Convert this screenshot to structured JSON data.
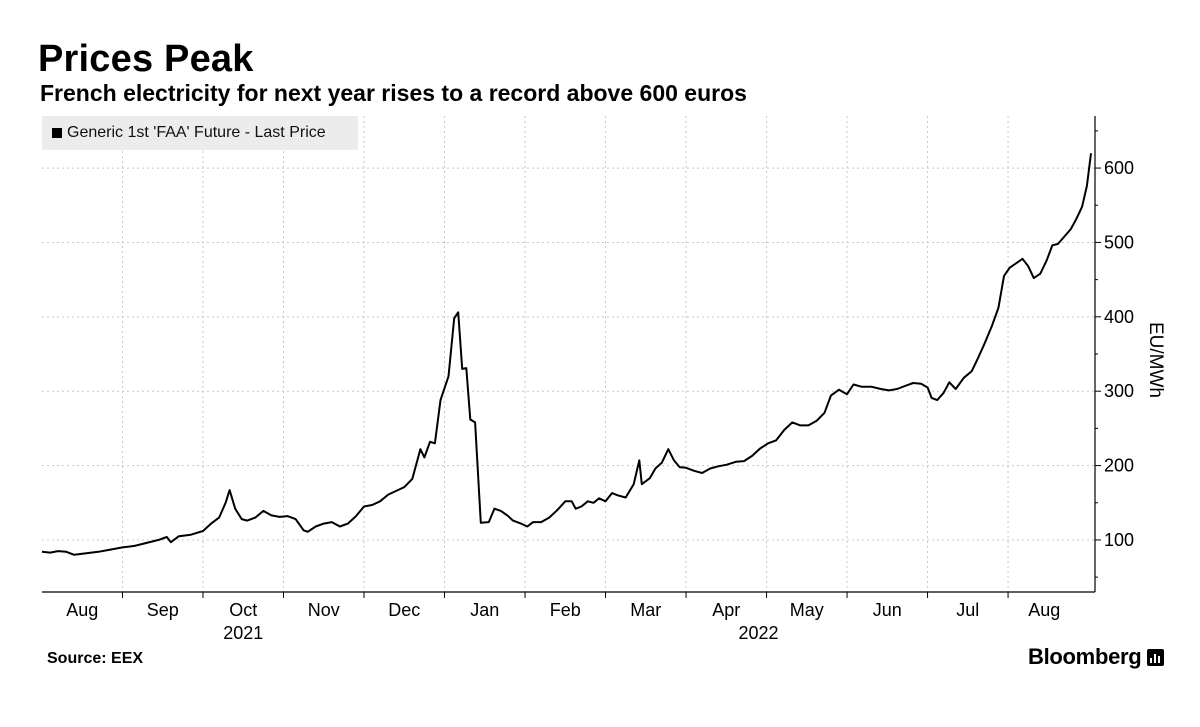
{
  "chart_data": {
    "type": "line",
    "title": "Prices Peak",
    "subtitle": "French electricity for next year rises to a record above 600 euros",
    "ylabel": "EU/MWh",
    "legend": {
      "entries": [
        "Generic 1st 'FAA' Future - Last Price"
      ],
      "placement": "top-left"
    },
    "ylim": [
      30,
      670
    ],
    "yticks": [
      100,
      200,
      300,
      400,
      500,
      600
    ],
    "yaxis_position": "right",
    "grid": true,
    "x_month_labels": [
      {
        "label": "Aug",
        "t": 0.5
      },
      {
        "label": "Sep",
        "t": 1.5
      },
      {
        "label": "Oct",
        "t": 2.5
      },
      {
        "label": "Nov",
        "t": 3.5
      },
      {
        "label": "Dec",
        "t": 4.5
      },
      {
        "label": "Jan",
        "t": 5.5
      },
      {
        "label": "Feb",
        "t": 6.5
      },
      {
        "label": "Mar",
        "t": 7.5
      },
      {
        "label": "Apr",
        "t": 8.5
      },
      {
        "label": "May",
        "t": 9.5
      },
      {
        "label": "Jun",
        "t": 10.5
      },
      {
        "label": "Jul",
        "t": 11.5
      },
      {
        "label": "Aug",
        "t": 12.45
      }
    ],
    "x_year_labels": [
      {
        "label": "2021",
        "t": 2.5
      },
      {
        "label": "2022",
        "t": 8.9
      }
    ],
    "x_month_boundaries": [
      1,
      2,
      3,
      4,
      5,
      6,
      7,
      8,
      9,
      10,
      11,
      12
    ],
    "xlim": [
      0,
      12.6
    ],
    "series": [
      {
        "name": "Generic 1st 'FAA' Future - Last Price",
        "points": [
          [
            0.0,
            84
          ],
          [
            0.1,
            83
          ],
          [
            0.2,
            85
          ],
          [
            0.3,
            84
          ],
          [
            0.4,
            80
          ],
          [
            0.55,
            82
          ],
          [
            0.7,
            84
          ],
          [
            0.85,
            87
          ],
          [
            1.0,
            90
          ],
          [
            1.15,
            92
          ],
          [
            1.3,
            96
          ],
          [
            1.45,
            100
          ],
          [
            1.55,
            104
          ],
          [
            1.6,
            97
          ],
          [
            1.7,
            105
          ],
          [
            1.85,
            107
          ],
          [
            2.0,
            112
          ],
          [
            2.1,
            122
          ],
          [
            2.2,
            130
          ],
          [
            2.28,
            150
          ],
          [
            2.33,
            167
          ],
          [
            2.4,
            142
          ],
          [
            2.48,
            128
          ],
          [
            2.55,
            126
          ],
          [
            2.65,
            130
          ],
          [
            2.75,
            139
          ],
          [
            2.85,
            133
          ],
          [
            2.95,
            131
          ],
          [
            3.05,
            132
          ],
          [
            3.15,
            128
          ],
          [
            3.25,
            113
          ],
          [
            3.3,
            111
          ],
          [
            3.4,
            118
          ],
          [
            3.5,
            122
          ],
          [
            3.6,
            124
          ],
          [
            3.7,
            118
          ],
          [
            3.8,
            122
          ],
          [
            3.9,
            132
          ],
          [
            4.0,
            145
          ],
          [
            4.1,
            147
          ],
          [
            4.2,
            152
          ],
          [
            4.3,
            161
          ],
          [
            4.4,
            166
          ],
          [
            4.5,
            171
          ],
          [
            4.6,
            182
          ],
          [
            4.7,
            222
          ],
          [
            4.75,
            211
          ],
          [
            4.82,
            232
          ],
          [
            4.88,
            230
          ],
          [
            4.95,
            288
          ],
          [
            5.05,
            320
          ],
          [
            5.12,
            398
          ],
          [
            5.17,
            406
          ],
          [
            5.22,
            330
          ],
          [
            5.27,
            331
          ],
          [
            5.32,
            262
          ],
          [
            5.38,
            258
          ],
          [
            5.45,
            123
          ],
          [
            5.55,
            124
          ],
          [
            5.62,
            142
          ],
          [
            5.7,
            139
          ],
          [
            5.78,
            133
          ],
          [
            5.85,
            126
          ],
          [
            5.95,
            122
          ],
          [
            6.03,
            118
          ],
          [
            6.1,
            124
          ],
          [
            6.2,
            124
          ],
          [
            6.3,
            130
          ],
          [
            6.4,
            140
          ],
          [
            6.5,
            152
          ],
          [
            6.58,
            152
          ],
          [
            6.63,
            142
          ],
          [
            6.7,
            145
          ],
          [
            6.78,
            152
          ],
          [
            6.85,
            150
          ],
          [
            6.92,
            156
          ],
          [
            7.0,
            152
          ],
          [
            7.08,
            163
          ],
          [
            7.15,
            160
          ],
          [
            7.25,
            157
          ],
          [
            7.35,
            175
          ],
          [
            7.42,
            207
          ],
          [
            7.45,
            175
          ],
          [
            7.55,
            183
          ],
          [
            7.62,
            196
          ],
          [
            7.7,
            204
          ],
          [
            7.78,
            222
          ],
          [
            7.85,
            207
          ],
          [
            7.92,
            198
          ],
          [
            8.0,
            197
          ],
          [
            8.1,
            193
          ],
          [
            8.2,
            190
          ],
          [
            8.3,
            196
          ],
          [
            8.4,
            199
          ],
          [
            8.5,
            201
          ],
          [
            8.62,
            205
          ],
          [
            8.72,
            206
          ],
          [
            8.82,
            213
          ],
          [
            8.92,
            223
          ],
          [
            9.02,
            230
          ],
          [
            9.12,
            234
          ],
          [
            9.22,
            248
          ],
          [
            9.32,
            258
          ],
          [
            9.42,
            254
          ],
          [
            9.52,
            254
          ],
          [
            9.62,
            260
          ],
          [
            9.72,
            271
          ],
          [
            9.8,
            294
          ],
          [
            9.9,
            302
          ],
          [
            10.0,
            296
          ],
          [
            10.08,
            309
          ],
          [
            10.18,
            306
          ],
          [
            10.3,
            306
          ],
          [
            10.42,
            303
          ],
          [
            10.52,
            301
          ],
          [
            10.62,
            303
          ],
          [
            10.72,
            307
          ],
          [
            10.82,
            311
          ],
          [
            10.92,
            310
          ],
          [
            11.0,
            305
          ],
          [
            11.05,
            291
          ],
          [
            11.12,
            288
          ],
          [
            11.2,
            298
          ],
          [
            11.27,
            312
          ],
          [
            11.35,
            303
          ],
          [
            11.45,
            318
          ],
          [
            11.55,
            327
          ],
          [
            11.62,
            343
          ],
          [
            11.7,
            362
          ],
          [
            11.8,
            388
          ],
          [
            11.88,
            412
          ],
          [
            11.95,
            455
          ],
          [
            12.02,
            466
          ],
          [
            12.1,
            472
          ],
          [
            12.18,
            478
          ],
          [
            12.25,
            468
          ],
          [
            12.32,
            452
          ],
          [
            12.4,
            458
          ],
          [
            12.48,
            476
          ],
          [
            12.55,
            496
          ],
          [
            12.62,
            498
          ],
          [
            12.7,
            508
          ],
          [
            12.78,
            518
          ],
          [
            12.85,
            532
          ],
          [
            12.92,
            548
          ],
          [
            12.98,
            576
          ],
          [
            13.03,
            620
          ]
        ]
      }
    ],
    "source": "Source: EEX",
    "brand": "Bloomberg"
  },
  "icons": {
    "logo": "bloomberg-logo-icon"
  }
}
